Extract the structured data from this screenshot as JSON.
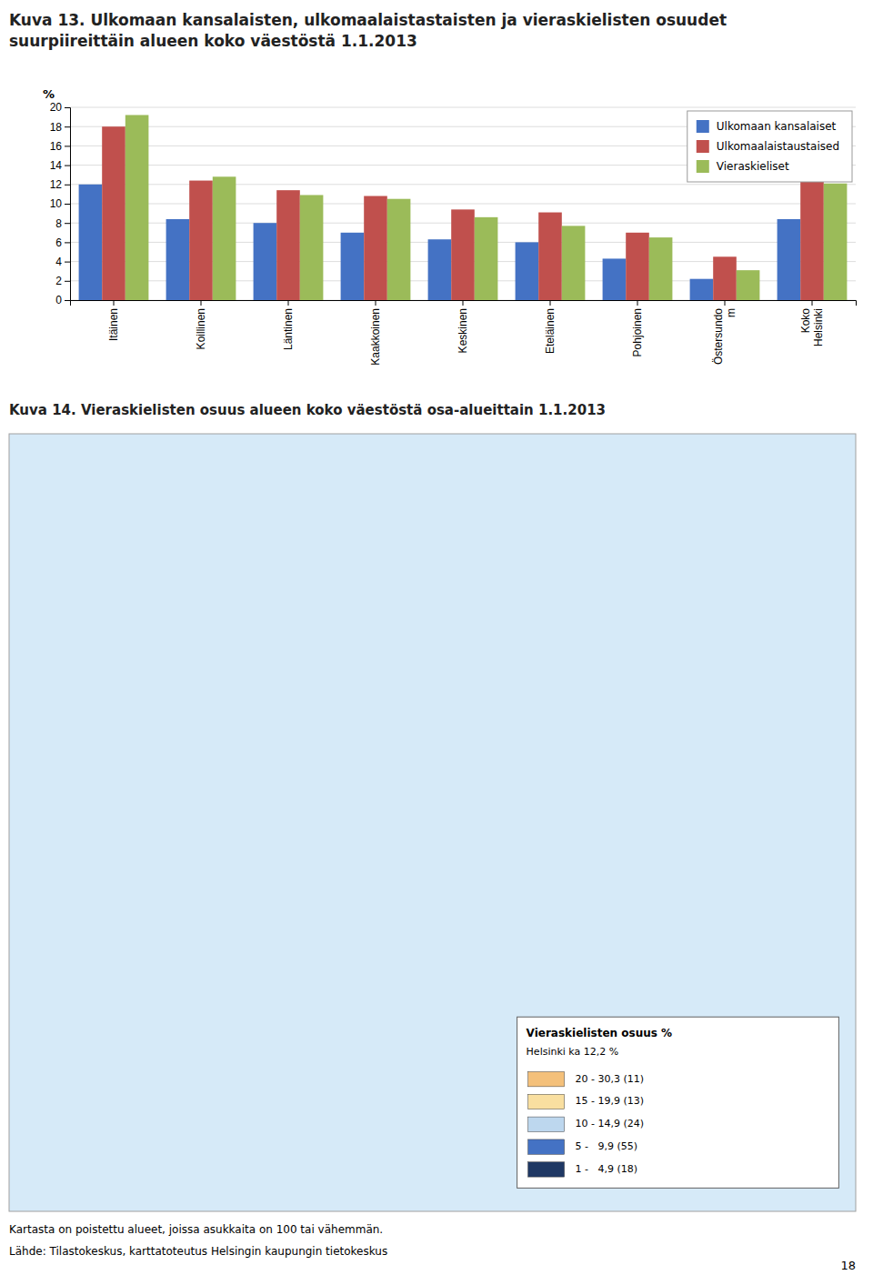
{
  "chart_data": [
    {
      "type": "bar",
      "title": "Kuva 13. Ulkomaan kansalaisten, ulkomaalaistastaisten ja vieraskielisten osuudet\nsuurpiireittäin alueen koko väestöstä 1.1.2013",
      "ylabel": "%",
      "categories": [
        "Itäinen",
        "Koillinen",
        "Läntinen",
        "Kaakkoinen",
        "Keskinen",
        "Eteläinen",
        "Pohjoinen",
        "Östersundo\nm",
        "Koko\nHelsinki"
      ],
      "series": [
        {
          "name": "Ulkomaan kansalaiset",
          "color": "#4472C4",
          "values": [
            12.0,
            8.4,
            8.0,
            7.0,
            6.3,
            6.0,
            4.3,
            2.2,
            8.4
          ]
        },
        {
          "name": "Ulkomaalaistaustaised",
          "color": "#C0504D",
          "values": [
            18.0,
            12.4,
            11.4,
            10.8,
            9.4,
            9.1,
            7.0,
            4.5,
            12.3
          ]
        },
        {
          "name": "Vieraskieliset",
          "color": "#9BBB59",
          "values": [
            19.2,
            12.8,
            10.9,
            10.5,
            8.6,
            7.7,
            6.5,
            3.1,
            12.1
          ]
        }
      ],
      "ylim": [
        0,
        20
      ],
      "yticks": [
        0,
        2,
        4,
        6,
        8,
        10,
        12,
        14,
        16,
        18,
        20
      ],
      "grid": true,
      "legend": "upper right"
    },
    {
      "type": "map",
      "title": "Kuva 14. Vieraskielisten osuus alueen koko väestöstä osa-alueittain 1.1.2013",
      "color": "#D6EAF8",
      "annotations": [
        {
          "text": "Vieraskielisten osuus %"
        },
        {
          "text": "Helsinki ka 12,2 %"
        },
        {
          "text": "20 - 30,3 (11)",
          "color": "#F4C07A"
        },
        {
          "text": "15 - 19,9 (13)",
          "color": "#F9DFA0"
        },
        {
          "text": "10 - 14,9 (24)",
          "color": "#BDD7EE"
        },
        {
          "text": "5 -   9,9 (55)",
          "color": "#4472C4"
        },
        {
          "text": "1 -   4,9 (18)",
          "color": "#1F3864"
        },
        {
          "text": "Kartasta on poistettu alueet, joissa asukkaita on 100 tai vähemmän."
        },
        {
          "text": "Lähde: Tilastokeskus, karttatoteutus Helsingin kaupungin tietokeskus"
        },
        {
          "text": "18"
        }
      ]
    }
  ]
}
